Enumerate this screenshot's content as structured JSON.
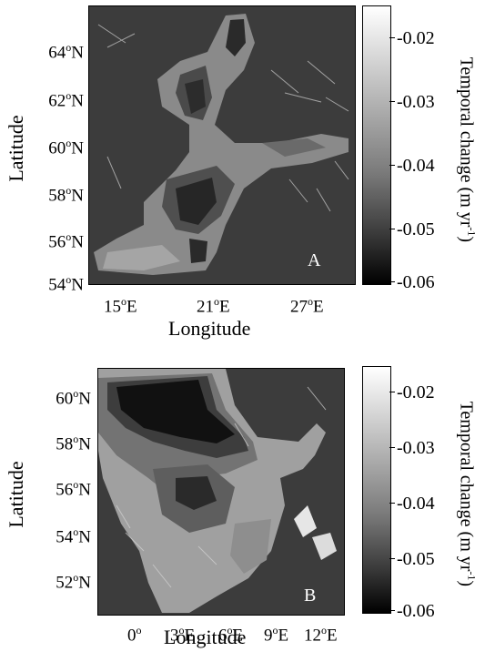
{
  "panels": [
    {
      "letter": "A",
      "xlabel": "Longitude",
      "ylabel": "Latitude",
      "xticks": [
        "15",
        "21",
        "27"
      ],
      "xtick_suffix": "E",
      "yticks": [
        "64",
        "62",
        "60",
        "58",
        "56",
        "54"
      ],
      "ytick_suffix": "N",
      "colorbar_label": "Temporal change (m yr",
      "colorbar_label_sup": "-1",
      "colorbar_label_end": ")",
      "colorbar_ticks": [
        "-0.02",
        "-0.03",
        "-0.04",
        "-0.05",
        "-0.06"
      ]
    },
    {
      "letter": "B",
      "xlabel": "Longitude",
      "ylabel": "Latitude",
      "xticks": [
        "0",
        "3",
        "6",
        "9",
        "12"
      ],
      "xtick_suffix": "E",
      "yticks": [
        "60",
        "58",
        "56",
        "54",
        "52"
      ],
      "ytick_suffix": "N",
      "colorbar_label": "Temporal change (m yr",
      "colorbar_label_sup": "-1",
      "colorbar_label_end": ")",
      "colorbar_ticks": [
        "-0.02",
        "-0.03",
        "-0.04",
        "-0.05",
        "-0.06"
      ]
    }
  ],
  "colors": {
    "land": "#3c3c3c",
    "scale_min": "#000000",
    "scale_max": "#ffffff"
  }
}
